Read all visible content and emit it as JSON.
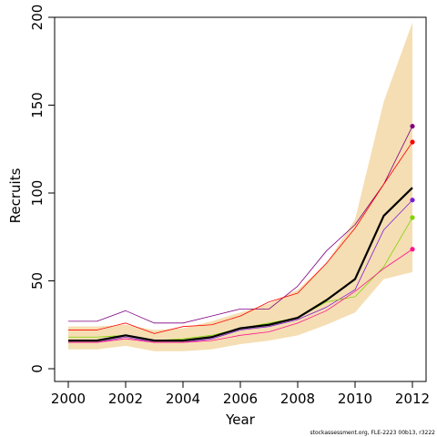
{
  "chart_data": {
    "type": "line",
    "xlabel": "Year",
    "ylabel": "Recruits",
    "xlim": [
      2000,
      2012
    ],
    "ylim": [
      0,
      200
    ],
    "x_ticks": [
      "2000",
      "2002",
      "2004",
      "2006",
      "2008",
      "2010",
      "2012"
    ],
    "y_ticks": [
      "0",
      "50",
      "100",
      "150",
      "200"
    ],
    "x": [
      2000,
      2001,
      2002,
      2003,
      2004,
      2005,
      2006,
      2007,
      2008,
      2009,
      2010,
      2011,
      2012
    ],
    "band": {
      "color": "#f5deb3",
      "lower": [
        11,
        11,
        13,
        10,
        10,
        11,
        14,
        16,
        19,
        25,
        32,
        51,
        55
      ],
      "upper": [
        24,
        24,
        25,
        22,
        23,
        27,
        32,
        37,
        45,
        60,
        85,
        152,
        197
      ]
    },
    "series": [
      {
        "color": "#000000",
        "width": 2.2,
        "values": [
          16,
          16,
          19,
          16,
          16,
          18,
          23,
          25,
          29,
          39,
          51,
          87,
          103
        ]
      },
      {
        "color": "#800080",
        "width": 0.8,
        "values": [
          27,
          27,
          33,
          26,
          26,
          30,
          34,
          34,
          47,
          67,
          82,
          105,
          138
        ],
        "end_marker": true
      },
      {
        "color": "#ff0000",
        "width": 0.8,
        "values": [
          22,
          22,
          26,
          20,
          24,
          25,
          30,
          38,
          43,
          60,
          80,
          105,
          129
        ],
        "end_marker": true
      },
      {
        "color": "#7e1bd8",
        "width": 0.8,
        "values": [
          15,
          15,
          18,
          15,
          15,
          17,
          22,
          24,
          28,
          35,
          45,
          79,
          96
        ],
        "end_marker": true
      },
      {
        "color": "#7fd400",
        "width": 0.8,
        "values": [
          18,
          18,
          19,
          16,
          17,
          19,
          23,
          26,
          29,
          38,
          41,
          58,
          86
        ],
        "end_marker": true
      },
      {
        "color": "#ff1493",
        "width": 0.8,
        "values": [
          15,
          15,
          17,
          15,
          15,
          16,
          19,
          21,
          26,
          33,
          44,
          57,
          68
        ],
        "end_marker": true
      }
    ]
  },
  "footnote": "stockassessment.org, FLE-2223 00b13, r3222"
}
